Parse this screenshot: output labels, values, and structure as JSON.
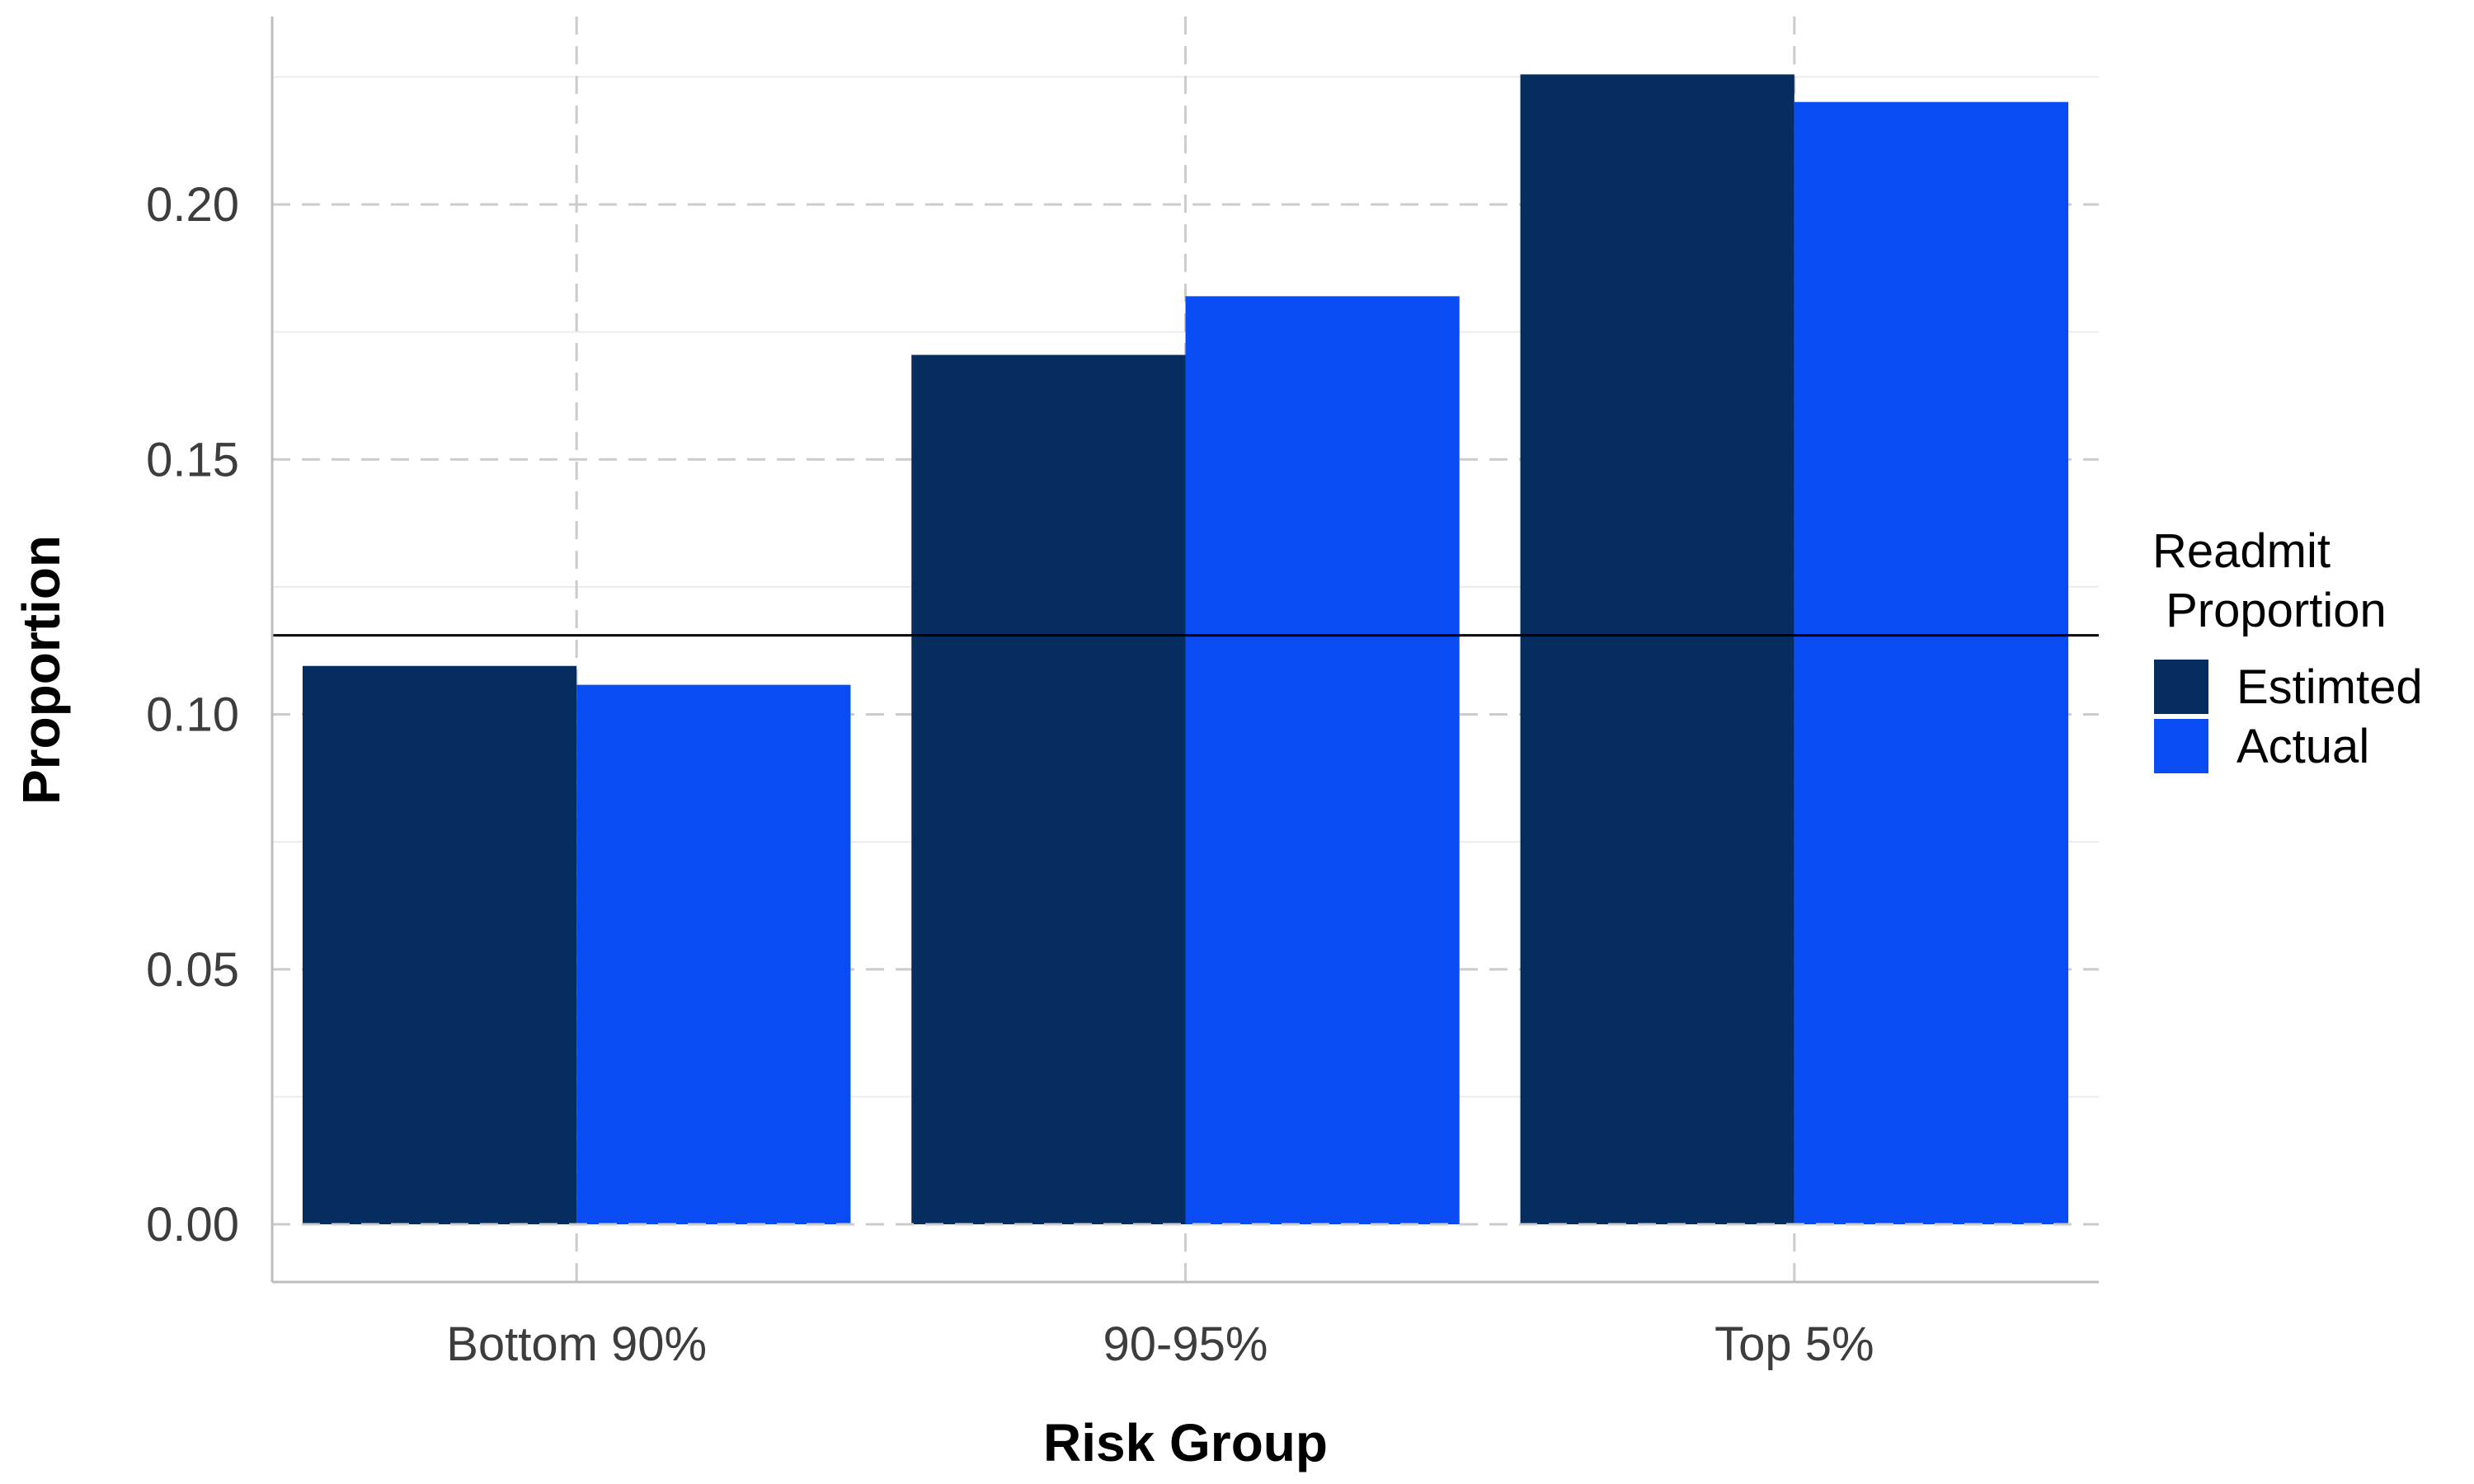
{
  "chart_data": {
    "type": "bar",
    "title": "",
    "xlabel": "Risk Group",
    "ylabel": "Proportion",
    "categories": [
      "Bottom 90%",
      "90-95%",
      "Top 5%"
    ],
    "series": [
      {
        "name": "Estimted",
        "values": [
          0.1095,
          0.1705,
          0.2255
        ]
      },
      {
        "name": "Actual",
        "values": [
          0.1058,
          0.182,
          0.2201
        ]
      }
    ],
    "ylim": [
      0,
      0.2255
    ],
    "yticks": [
      "0.00",
      "0.05",
      "0.10",
      "0.15",
      "0.20"
    ],
    "ytick_values": [
      0,
      0.05,
      0.1,
      0.15,
      0.2
    ],
    "reference_line": 0.1155,
    "legend": {
      "title_line1": "Readmit",
      "title_line2": " Proportion",
      "position": "right"
    },
    "grid": true,
    "colors": {
      "Estimted": "#052d5f",
      "Actual": "#0a4cf3",
      "reference_line": "#000000",
      "grid": "#cccccc"
    }
  }
}
